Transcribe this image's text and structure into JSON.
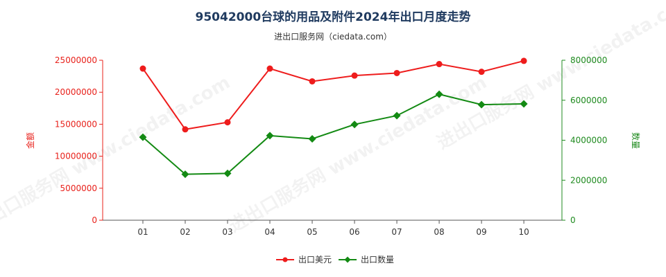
{
  "header": {
    "title": "95042000台球的用品及附件2024年出口月度走势",
    "subtitle": "进出口服务网（ciedata.com）"
  },
  "watermark": "进出口服务网 www.ciedata.com",
  "chart_data": {
    "type": "line",
    "categories": [
      "01",
      "02",
      "03",
      "04",
      "05",
      "06",
      "07",
      "08",
      "09",
      "10"
    ],
    "y_left": {
      "label": "金额",
      "min": 0,
      "max": 25000000,
      "ticks": [
        0,
        5000000,
        10000000,
        15000000,
        20000000,
        25000000
      ],
      "color": "#e8201a"
    },
    "y_right": {
      "label": "数量",
      "min": 0,
      "max": 8000000,
      "ticks": [
        0,
        2000000,
        4000000,
        6000000,
        8000000
      ],
      "color": "#1e8a1e"
    },
    "series": [
      {
        "name": "出口美元",
        "axis": "left",
        "color": "#ee1c1c",
        "marker": "circle",
        "values": [
          23700000,
          14200000,
          15300000,
          23700000,
          21700000,
          22600000,
          23000000,
          24400000,
          23200000,
          24900000
        ]
      },
      {
        "name": "出口数量",
        "axis": "right",
        "color": "#138a13",
        "marker": "diamond",
        "values": [
          4150000,
          2300000,
          2340000,
          4230000,
          4070000,
          4790000,
          5230000,
          6300000,
          5780000,
          5820000
        ]
      }
    ],
    "legend_position": "bottom-center",
    "grid": false
  }
}
